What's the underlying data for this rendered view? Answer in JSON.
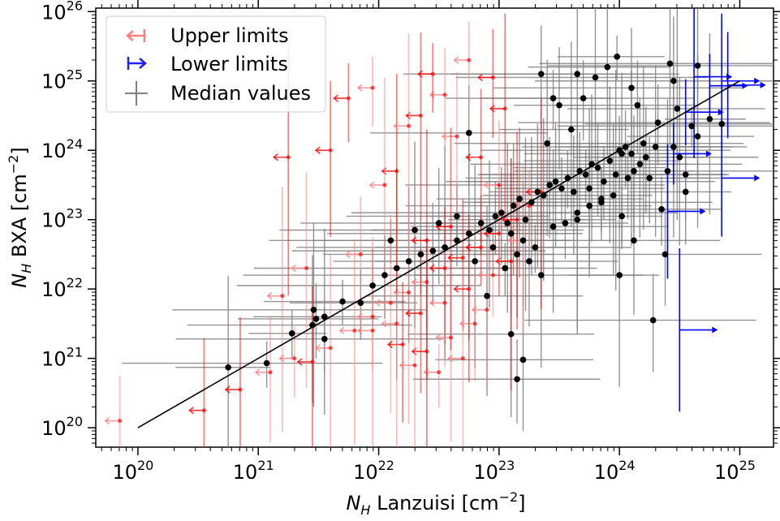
{
  "chart_data": {
    "type": "scatter",
    "x_axis": {
      "log_scale": true,
      "lim_log10": [
        19.65,
        25.28
      ],
      "label_main": "N",
      "label_sub": "H",
      "label_rest": " Lanzuisi [cm",
      "label_sup": "−2",
      "label_end": "]"
    },
    "y_axis": {
      "log_scale": true,
      "lim_log10": [
        19.72,
        26.05
      ],
      "label_main": "N",
      "label_sub": "H",
      "label_rest": " BXA [cm",
      "label_sup": "−2",
      "label_end": "]"
    },
    "x_ticks": [
      {
        "base": "10",
        "exp": "20",
        "v": 20
      },
      {
        "base": "10",
        "exp": "21",
        "v": 21
      },
      {
        "base": "10",
        "exp": "22",
        "v": 22
      },
      {
        "base": "10",
        "exp": "23",
        "v": 23
      },
      {
        "base": "10",
        "exp": "24",
        "v": 24
      },
      {
        "base": "10",
        "exp": "25",
        "v": 25
      }
    ],
    "y_ticks": [
      {
        "base": "10",
        "exp": "20",
        "v": 20
      },
      {
        "base": "10",
        "exp": "21",
        "v": 21
      },
      {
        "base": "10",
        "exp": "22",
        "v": 22
      },
      {
        "base": "10",
        "exp": "23",
        "v": 23
      },
      {
        "base": "10",
        "exp": "24",
        "v": 24
      },
      {
        "base": "10",
        "exp": "25",
        "v": 25
      },
      {
        "base": "10",
        "exp": "26",
        "v": 26
      }
    ],
    "one_to_one_line": {
      "from_log10": 20,
      "to_log10": 25
    },
    "legend": {
      "position": "upper-left",
      "entries": [
        {
          "label": "Upper limits",
          "color": "#ff7f7f",
          "marker": "left-arrow"
        },
        {
          "label": "Lower limits",
          "color": "#2020ff",
          "marker": "right-arrow"
        },
        {
          "label": "Median values",
          "color": "#808080",
          "marker": "cross"
        }
      ]
    },
    "colors": {
      "median": "#000000",
      "median_err": "#808080",
      "upper": "#ff0000",
      "upper_light": "#ff8080",
      "lower": "#0000ff",
      "line": "#000000"
    },
    "series": {
      "median_values": [
        [
          20.75,
          20.87
        ],
        [
          21.07,
          20.93
        ],
        [
          21.28,
          21.36
        ],
        [
          21.45,
          21.48
        ],
        [
          21.46,
          21.7
        ],
        [
          21.48,
          21.57
        ],
        [
          21.55,
          21.6
        ],
        [
          21.55,
          21.28
        ],
        [
          21.7,
          21.82
        ],
        [
          21.85,
          21.8
        ],
        [
          21.95,
          22.05
        ],
        [
          22.05,
          22.2
        ],
        [
          22.15,
          22.3
        ],
        [
          22.25,
          22.4
        ],
        [
          22.35,
          22.5
        ],
        [
          22.45,
          22.55
        ],
        [
          22.55,
          22.6
        ],
        [
          22.65,
          22.7
        ],
        [
          22.75,
          22.8
        ],
        [
          22.85,
          22.95
        ],
        [
          22.92,
          22.85
        ],
        [
          22.97,
          23.05
        ],
        [
          23.02,
          23.1
        ],
        [
          23.07,
          22.95
        ],
        [
          23.12,
          23.2
        ],
        [
          23.17,
          23.3
        ],
        [
          23.22,
          23.0
        ],
        [
          23.27,
          23.25
        ],
        [
          23.32,
          23.4
        ],
        [
          23.37,
          23.35
        ],
        [
          23.42,
          23.5
        ],
        [
          23.47,
          23.55
        ],
        [
          23.52,
          23.45
        ],
        [
          23.57,
          23.6
        ],
        [
          23.62,
          23.4
        ],
        [
          23.67,
          23.7
        ],
        [
          23.72,
          23.65
        ],
        [
          23.77,
          23.8
        ],
        [
          23.82,
          23.75
        ],
        [
          23.87,
          23.55
        ],
        [
          23.92,
          23.85
        ],
        [
          23.97,
          23.65
        ],
        [
          24.02,
          23.95
        ],
        [
          24.07,
          23.6
        ],
        [
          24.12,
          23.7
        ],
        [
          24.17,
          23.8
        ],
        [
          24.22,
          23.9
        ],
        [
          23.1,
          22.8
        ],
        [
          23.2,
          22.7
        ],
        [
          23.3,
          22.6
        ],
        [
          23.15,
          22.5
        ],
        [
          23.25,
          22.4
        ],
        [
          23.05,
          22.3
        ],
        [
          22.95,
          22.6
        ],
        [
          23.35,
          22.2
        ],
        [
          23.45,
          22.9
        ],
        [
          23.55,
          22.95
        ],
        [
          23.65,
          23.1
        ],
        [
          23.75,
          23.2
        ],
        [
          23.85,
          23.3
        ],
        [
          23.6,
          24.3
        ],
        [
          23.5,
          24.65
        ],
        [
          23.65,
          25.1
        ],
        [
          23.9,
          25.2
        ],
        [
          23.98,
          25.35
        ],
        [
          23.8,
          25.05
        ],
        [
          23.7,
          24.75
        ],
        [
          24.1,
          24.9
        ],
        [
          24.15,
          24.65
        ],
        [
          24.42,
          25.25
        ],
        [
          24.45,
          25.0
        ],
        [
          24.48,
          24.6
        ],
        [
          24.32,
          24.4
        ],
        [
          24.2,
          24.1
        ],
        [
          24.3,
          24.05
        ],
        [
          24.45,
          24.05
        ],
        [
          24.6,
          24.35
        ],
        [
          24.55,
          23.4
        ],
        [
          24.65,
          24.2
        ],
        [
          24.0,
          22.2
        ],
        [
          24.12,
          22.7
        ],
        [
          24.02,
          23.05
        ],
        [
          24.35,
          23.15
        ],
        [
          24.55,
          23.65
        ],
        [
          24.38,
          22.5
        ],
        [
          22.75,
          24.25
        ],
        [
          23.35,
          25.1
        ],
        [
          23.45,
          24.75
        ],
        [
          24.65,
          25.22
        ],
        [
          24.75,
          24.45
        ],
        [
          24.85,
          24.38
        ],
        [
          23.2,
          20.98
        ],
        [
          23.15,
          20.7
        ],
        [
          23.1,
          21.35
        ],
        [
          24.28,
          21.55
        ],
        [
          22.1,
          22.7
        ],
        [
          22.3,
          22.85
        ],
        [
          22.5,
          22.95
        ],
        [
          22.65,
          23.05
        ],
        [
          22.8,
          22.4
        ],
        [
          23.4,
          24.1
        ],
        [
          24.25,
          23.6
        ],
        [
          24.4,
          23.7
        ],
        [
          24.5,
          23.9
        ],
        [
          24.0,
          24.0
        ],
        [
          24.05,
          24.05
        ],
        [
          24.1,
          23.95
        ],
        [
          23.95,
          23.35
        ],
        [
          23.85,
          23.25
        ],
        [
          23.75,
          23.45
        ],
        [
          23.65,
          23.0
        ],
        [
          22.9,
          21.9
        ]
      ],
      "upper_limits": [
        [
          19.85,
          20.1
        ],
        [
          20.55,
          20.25
        ],
        [
          20.85,
          20.55
        ],
        [
          21.1,
          20.8
        ],
        [
          21.3,
          21.0
        ],
        [
          21.45,
          20.95
        ],
        [
          21.6,
          21.15
        ],
        [
          21.8,
          21.4
        ],
        [
          21.95,
          21.6
        ],
        [
          22.1,
          21.8
        ],
        [
          22.25,
          21.95
        ],
        [
          22.4,
          22.1
        ],
        [
          22.55,
          22.3
        ],
        [
          22.7,
          22.45
        ],
        [
          22.85,
          22.6
        ],
        [
          23.0,
          22.8
        ],
        [
          22.2,
          21.2
        ],
        [
          22.4,
          21.1
        ],
        [
          22.6,
          21.3
        ],
        [
          22.8,
          21.5
        ],
        [
          22.3,
          20.9
        ],
        [
          22.5,
          20.8
        ],
        [
          22.7,
          21.0
        ],
        [
          22.9,
          21.7
        ],
        [
          21.95,
          21.4
        ],
        [
          22.15,
          21.5
        ],
        [
          22.35,
          21.65
        ],
        [
          22.55,
          21.8
        ],
        [
          22.75,
          22.0
        ],
        [
          22.95,
          22.2
        ],
        [
          23.1,
          22.4
        ],
        [
          23.2,
          22.7
        ],
        [
          21.6,
          24.0
        ],
        [
          21.95,
          24.9
        ],
        [
          21.75,
          24.75
        ],
        [
          22.15,
          23.7
        ],
        [
          22.35,
          24.5
        ],
        [
          22.55,
          24.8
        ],
        [
          22.75,
          25.3
        ],
        [
          22.95,
          25.05
        ],
        [
          23.05,
          24.6
        ],
        [
          22.65,
          24.2
        ],
        [
          22.85,
          23.9
        ],
        [
          21.25,
          23.9
        ],
        [
          22.45,
          25.1
        ],
        [
          22.25,
          24.35
        ],
        [
          22.05,
          23.5
        ],
        [
          21.85,
          22.5
        ],
        [
          21.4,
          22.3
        ],
        [
          21.2,
          21.9
        ],
        [
          23.15,
          23.0
        ],
        [
          23.25,
          23.2
        ],
        [
          23.35,
          23.4
        ],
        [
          23.0,
          23.5
        ],
        [
          22.6,
          22.9
        ],
        [
          22.4,
          22.7
        ]
      ],
      "lower_limits": [
        [
          24.62,
          25.06
        ],
        [
          24.75,
          24.93
        ],
        [
          24.9,
          24.94
        ],
        [
          24.85,
          25.0
        ],
        [
          24.55,
          24.55
        ],
        [
          24.45,
          23.95
        ],
        [
          24.85,
          23.6
        ],
        [
          24.4,
          23.12
        ],
        [
          24.5,
          21.41
        ]
      ]
    }
  }
}
